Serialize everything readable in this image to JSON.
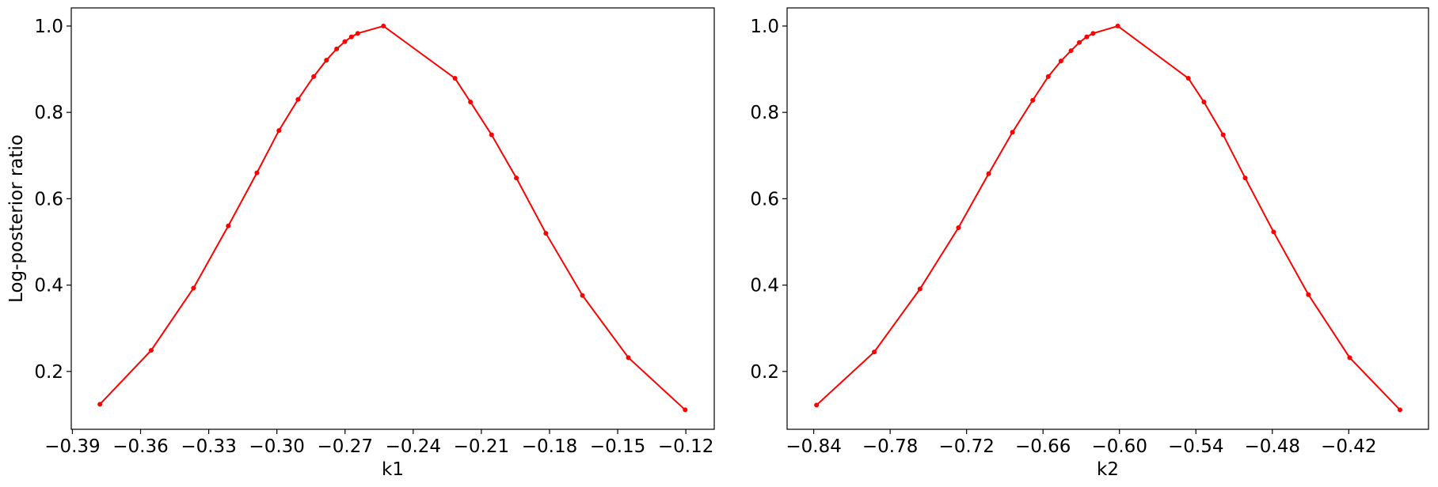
{
  "chart_data": [
    {
      "type": "line",
      "xlabel": "k1",
      "ylabel": "Log-posterior ratio",
      "x": [
        -0.3779,
        -0.3553,
        -0.3367,
        -0.3214,
        -0.3088,
        -0.2991,
        -0.2907,
        -0.2838,
        -0.2782,
        -0.2737,
        -0.2701,
        -0.2672,
        -0.2644,
        -0.2531,
        -0.2216,
        -0.2148,
        -0.2055,
        -0.1946,
        -0.1816,
        -0.1655,
        -0.1453,
        -0.1203
      ],
      "series": [
        {
          "color": "#ff0000",
          "values": [
            0.124,
            0.249,
            0.393,
            0.537,
            0.66,
            0.758,
            0.83,
            0.883,
            0.921,
            0.947,
            0.964,
            0.975,
            0.983,
            1.0,
            0.879,
            0.824,
            0.748,
            0.648,
            0.52,
            0.376,
            0.232,
            0.111
          ]
        }
      ],
      "xlim": [
        -0.3905,
        -0.1075
      ],
      "ylim": [
        0.066,
        1.042
      ],
      "xticks": [
        {
          "value": -0.39,
          "label": "−0.39"
        },
        {
          "value": -0.36,
          "label": "−0.36"
        },
        {
          "value": -0.33,
          "label": "−0.33"
        },
        {
          "value": -0.3,
          "label": "−0.30"
        },
        {
          "value": -0.27,
          "label": "−0.27"
        },
        {
          "value": -0.24,
          "label": "−0.24"
        },
        {
          "value": -0.21,
          "label": "−0.21"
        },
        {
          "value": -0.18,
          "label": "−0.18"
        },
        {
          "value": -0.15,
          "label": "−0.15"
        },
        {
          "value": -0.12,
          "label": "−0.12"
        }
      ],
      "yticks": [
        0.2,
        0.4,
        0.6,
        0.8,
        {
          "value": 1.0,
          "label": "1.0"
        }
      ]
    },
    {
      "type": "line",
      "xlabel": "k2",
      "x": [
        -0.8378,
        -0.7925,
        -0.7566,
        -0.7264,
        -0.7027,
        -0.684,
        -0.6681,
        -0.6559,
        -0.6459,
        -0.638,
        -0.6315,
        -0.6257,
        -0.6207,
        -0.6013,
        -0.5459,
        -0.5337,
        -0.5186,
        -0.5013,
        -0.479,
        -0.4517,
        -0.4193,
        -0.3798
      ],
      "series": [
        {
          "color": "#ff0000",
          "values": [
            0.122,
            0.245,
            0.391,
            0.533,
            0.658,
            0.754,
            0.828,
            0.883,
            0.919,
            0.943,
            0.962,
            0.975,
            0.983,
            1.0,
            0.879,
            0.824,
            0.748,
            0.648,
            0.523,
            0.378,
            0.232,
            0.111
          ]
        }
      ],
      "xlim": [
        -0.8609,
        -0.3574
      ],
      "ylim": [
        0.066,
        1.042
      ],
      "xticks": [
        {
          "value": -0.84,
          "label": "−0.84"
        },
        {
          "value": -0.78,
          "label": "−0.78"
        },
        {
          "value": -0.72,
          "label": "−0.72"
        },
        {
          "value": -0.66,
          "label": "−0.66"
        },
        {
          "value": -0.6,
          "label": "−0.60"
        },
        {
          "value": -0.54,
          "label": "−0.54"
        },
        {
          "value": -0.48,
          "label": "−0.48"
        },
        {
          "value": -0.42,
          "label": "−0.42"
        }
      ],
      "yticks": [
        0.2,
        0.4,
        0.6,
        0.8,
        {
          "value": 1.0,
          "label": "1.0"
        }
      ]
    }
  ]
}
